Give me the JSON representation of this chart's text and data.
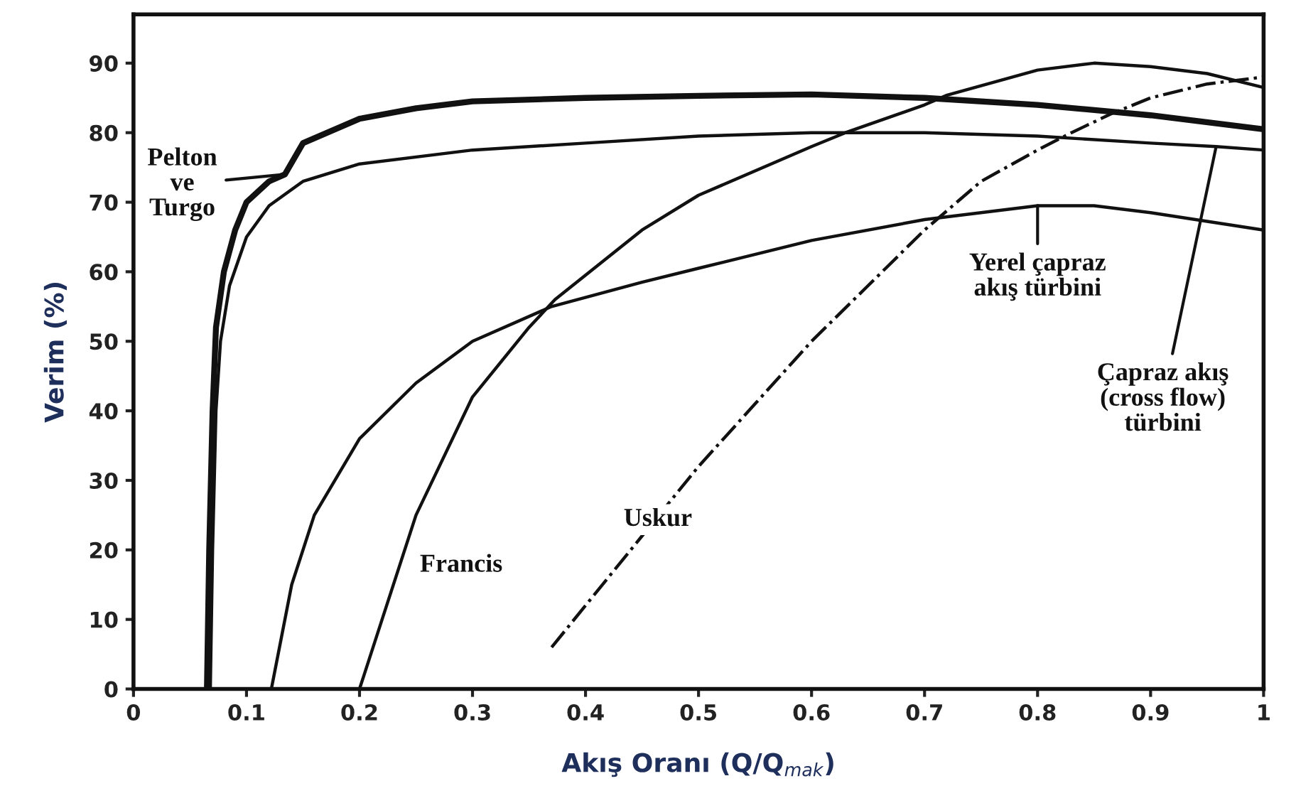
{
  "chart_data": {
    "type": "line",
    "xlabel": "Akış Oranı (Q/Q$_{mak}$)",
    "ylabel": "Verim (%)",
    "xlim": [
      0,
      1
    ],
    "ylim": [
      0,
      97
    ],
    "xticks": [
      0,
      0.1,
      0.2,
      0.3,
      0.4,
      0.5,
      0.6,
      0.7,
      0.8,
      0.9,
      1
    ],
    "yticks": [
      0,
      10,
      20,
      30,
      40,
      50,
      60,
      70,
      80,
      90
    ],
    "grid": false,
    "legend": false,
    "marker": "none",
    "series": [
      {
        "color": "#111111",
        "line_style": "solid",
        "x": [
          0.065,
          0.067,
          0.07,
          0.073,
          0.08,
          0.09,
          0.1,
          0.12,
          0.134,
          0.15,
          0.2,
          0.25,
          0.3,
          0.4,
          0.5,
          0.6,
          0.7,
          0.8,
          0.9,
          1.0
        ],
        "values": [
          0,
          20,
          40,
          52,
          60,
          66,
          70,
          73,
          74,
          78.5,
          82,
          83.5,
          84.5,
          85,
          85.3,
          85.5,
          85,
          84,
          82.5,
          80.5
        ]
      },
      {
        "color": "#111111",
        "line_style": "solid",
        "x": [
          0.068,
          0.07,
          0.073,
          0.077,
          0.085,
          0.1,
          0.12,
          0.15,
          0.2,
          0.3,
          0.4,
          0.5,
          0.6,
          0.7,
          0.8,
          0.9,
          0.958,
          1.0
        ],
        "values": [
          0,
          20,
          40,
          50,
          58,
          65,
          69.5,
          73,
          75.5,
          77.5,
          78.5,
          79.5,
          80,
          80,
          79.5,
          78.5,
          78,
          77.5
        ]
      },
      {
        "color": "#111111",
        "line_style": "solid",
        "x": [
          0.122,
          0.14,
          0.16,
          0.2,
          0.25,
          0.3,
          0.37,
          0.45,
          0.5,
          0.6,
          0.7,
          0.8,
          0.85,
          0.9,
          1.0
        ],
        "values": [
          0,
          15,
          25,
          36,
          44,
          50,
          55,
          58.5,
          60.5,
          64.5,
          67.5,
          69.5,
          69.5,
          68.5,
          66
        ]
      },
      {
        "color": "#111111",
        "line_style": "solid",
        "x": [
          0.2,
          0.22,
          0.25,
          0.3,
          0.35,
          0.373,
          0.45,
          0.5,
          0.6,
          0.63,
          0.7,
          0.72,
          0.8,
          0.85,
          0.9,
          0.95,
          1.0
        ],
        "values": [
          0,
          10,
          25,
          42,
          52,
          56,
          66,
          71,
          78,
          80,
          84,
          85.4,
          89,
          90,
          89.5,
          88.5,
          86.5
        ]
      },
      {
        "color": "#111111",
        "line_style": "dashdot",
        "x": [
          0.37,
          0.4,
          0.45,
          0.5,
          0.55,
          0.6,
          0.65,
          0.7,
          0.75,
          0.8,
          0.83,
          0.865,
          0.9,
          0.95,
          1.0
        ],
        "values": [
          6,
          12,
          22,
          32,
          41,
          50,
          58,
          66,
          73,
          77.5,
          80,
          82.7,
          85,
          87,
          88
        ]
      }
    ],
    "annotations": [
      {
        "text": "Pelton\nve\nTurgo",
        "x": 0.134,
        "y": 74
      },
      {
        "text": "Yerel çapraz\nakış türbini",
        "x": 0.8,
        "y": 69.5
      },
      {
        "text": "Çapraz akış\n(cross flow)\ntürbini",
        "x": 0.958,
        "y": 78
      },
      "Francis",
      "Uskur"
    ]
  }
}
